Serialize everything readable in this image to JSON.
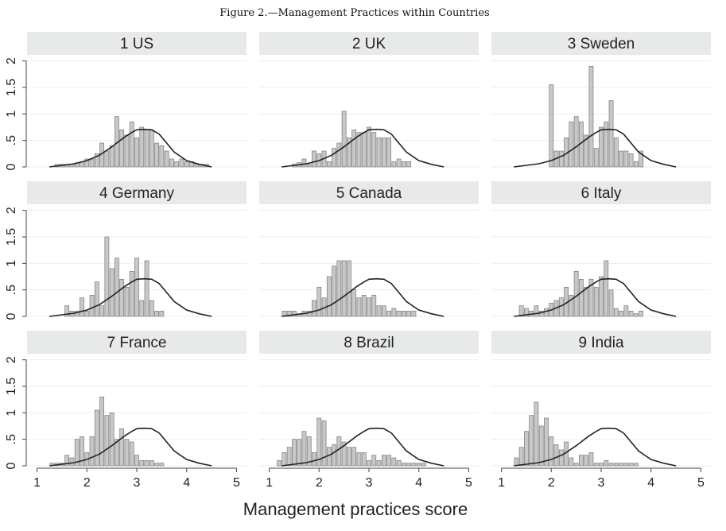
{
  "figure_title": "Figure 2.—Management Practices within Countries",
  "chart_data": {
    "type": "bar",
    "xlabel": "Management practices score",
    "xticks": [
      1,
      2,
      3,
      4,
      5
    ],
    "yticks": [
      0,
      0.5,
      1,
      1.5,
      2
    ],
    "ytick_labels": [
      "0",
      ".5",
      "1",
      "1.5",
      "2"
    ],
    "xlim": [
      0.8,
      5.2
    ],
    "ylim": [
      0,
      2.1
    ],
    "bin_width": 0.1,
    "bar_color": "#c8c8c8",
    "line_color": "#222222",
    "reference_density": {
      "x": [
        1.25,
        1.5,
        1.75,
        2.0,
        2.25,
        2.5,
        2.75,
        2.9,
        3.0,
        3.15,
        3.3,
        3.45,
        3.6,
        3.75,
        4.0,
        4.25,
        4.5
      ],
      "y": [
        0.0,
        0.03,
        0.06,
        0.12,
        0.22,
        0.38,
        0.56,
        0.65,
        0.7,
        0.71,
        0.7,
        0.62,
        0.45,
        0.28,
        0.12,
        0.05,
        0.0
      ]
    },
    "panels": [
      {
        "label": "1 US",
        "bins": [
          1.4,
          1.5,
          1.6,
          1.7,
          1.8,
          1.9,
          2.0,
          2.1,
          2.2,
          2.3,
          2.4,
          2.5,
          2.6,
          2.7,
          2.8,
          2.9,
          3.0,
          3.1,
          3.2,
          3.3,
          3.4,
          3.5,
          3.6,
          3.7,
          3.8,
          3.9,
          4.0,
          4.1,
          4.2,
          4.3,
          4.4
        ],
        "values": [
          0.05,
          0.05,
          0.05,
          0.05,
          0.08,
          0.1,
          0.15,
          0.15,
          0.25,
          0.45,
          0.3,
          0.4,
          0.95,
          0.7,
          0.6,
          0.85,
          0.55,
          0.75,
          0.7,
          0.7,
          0.45,
          0.4,
          0.3,
          0.15,
          0.1,
          0.15,
          0.1,
          0.1,
          0.05,
          0.05,
          0.05
        ]
      },
      {
        "label": "2 UK",
        "bins": [
          1.5,
          1.6,
          1.7,
          1.8,
          1.9,
          2.0,
          2.1,
          2.2,
          2.3,
          2.4,
          2.5,
          2.6,
          2.7,
          2.8,
          2.9,
          3.0,
          3.1,
          3.2,
          3.3,
          3.4,
          3.5,
          3.6,
          3.7,
          3.8
        ],
        "values": [
          0.05,
          0.08,
          0.15,
          0.05,
          0.3,
          0.25,
          0.3,
          0.1,
          0.35,
          0.45,
          1.05,
          0.55,
          0.7,
          0.65,
          0.65,
          0.75,
          0.65,
          0.55,
          0.55,
          0.55,
          0.1,
          0.15,
          0.1,
          0.1
        ]
      },
      {
        "label": "3 Sweden",
        "bins": [
          2.0,
          2.1,
          2.2,
          2.3,
          2.4,
          2.5,
          2.6,
          2.7,
          2.8,
          2.9,
          3.0,
          3.1,
          3.2,
          3.3,
          3.4,
          3.5,
          3.6,
          3.7,
          3.8
        ],
        "values": [
          1.55,
          0.3,
          0.3,
          0.55,
          0.85,
          0.95,
          0.85,
          0.6,
          1.9,
          0.35,
          0.75,
          0.85,
          1.25,
          0.55,
          0.3,
          0.3,
          0.25,
          0.1,
          0.3
        ]
      },
      {
        "label": "4 Germany",
        "bins": [
          1.6,
          1.7,
          1.8,
          1.9,
          2.0,
          2.1,
          2.2,
          2.3,
          2.4,
          2.5,
          2.6,
          2.7,
          2.8,
          2.9,
          3.0,
          3.1,
          3.2,
          3.3,
          3.4,
          3.5
        ],
        "values": [
          0.2,
          0.1,
          0.1,
          0.35,
          0.1,
          0.4,
          0.65,
          0.2,
          1.5,
          0.9,
          1.1,
          0.7,
          0.55,
          0.85,
          1.1,
          0.3,
          1.05,
          0.3,
          0.1,
          0.1
        ]
      },
      {
        "label": "5 Canada",
        "bins": [
          1.3,
          1.4,
          1.5,
          1.6,
          1.7,
          1.8,
          1.9,
          2.0,
          2.1,
          2.2,
          2.3,
          2.4,
          2.5,
          2.6,
          2.7,
          2.8,
          2.9,
          3.0,
          3.1,
          3.2,
          3.3,
          3.4,
          3.5,
          3.6,
          3.7,
          3.8,
          3.9
        ],
        "values": [
          0.1,
          0.1,
          0.1,
          0.05,
          0.1,
          0.1,
          0.3,
          0.55,
          0.35,
          0.75,
          0.95,
          1.05,
          1.05,
          1.05,
          0.5,
          0.35,
          0.4,
          0.35,
          0.4,
          0.2,
          0.2,
          0.1,
          0.15,
          0.1,
          0.1,
          0.1,
          0.1
        ]
      },
      {
        "label": "6 Italy",
        "bins": [
          1.4,
          1.5,
          1.6,
          1.7,
          1.8,
          1.9,
          2.0,
          2.1,
          2.2,
          2.3,
          2.4,
          2.5,
          2.6,
          2.7,
          2.8,
          2.9,
          3.0,
          3.1,
          3.2,
          3.3,
          3.4,
          3.5,
          3.6,
          3.7,
          3.8
        ],
        "values": [
          0.2,
          0.15,
          0.1,
          0.2,
          0.1,
          0.15,
          0.25,
          0.3,
          0.35,
          0.55,
          0.4,
          0.85,
          0.7,
          0.55,
          0.7,
          0.55,
          0.75,
          1.05,
          0.5,
          0.15,
          0.1,
          0.2,
          0.1,
          0.05,
          0.1
        ]
      },
      {
        "label": "7 France",
        "bins": [
          1.3,
          1.4,
          1.5,
          1.6,
          1.7,
          1.8,
          1.9,
          2.0,
          2.1,
          2.2,
          2.3,
          2.4,
          2.5,
          2.6,
          2.7,
          2.8,
          2.9,
          3.0,
          3.1,
          3.2,
          3.3,
          3.4,
          3.5
        ],
        "values": [
          0.05,
          0.05,
          0.05,
          0.2,
          0.15,
          0.5,
          0.55,
          0.25,
          0.55,
          1.05,
          1.3,
          0.95,
          1.0,
          0.5,
          0.7,
          0.5,
          0.45,
          0.2,
          0.1,
          0.1,
          0.1,
          0.05,
          0.05
        ]
      },
      {
        "label": "8 Brazil",
        "bins": [
          1.2,
          1.3,
          1.4,
          1.5,
          1.6,
          1.7,
          1.8,
          1.9,
          2.0,
          2.1,
          2.2,
          2.3,
          2.4,
          2.5,
          2.6,
          2.7,
          2.8,
          2.9,
          3.0,
          3.1,
          3.2,
          3.3,
          3.4,
          3.5,
          3.6,
          3.7,
          3.8,
          3.9,
          4.0,
          4.1
        ],
        "values": [
          0.1,
          0.25,
          0.35,
          0.5,
          0.5,
          0.65,
          0.55,
          0.25,
          0.9,
          0.85,
          0.35,
          0.4,
          0.55,
          0.45,
          0.35,
          0.35,
          0.25,
          0.25,
          0.1,
          0.2,
          0.1,
          0.2,
          0.2,
          0.15,
          0.1,
          0.05,
          0.05,
          0.05,
          0.05,
          0.05
        ]
      },
      {
        "label": "9 India",
        "bins": [
          1.3,
          1.4,
          1.5,
          1.6,
          1.7,
          1.8,
          1.9,
          2.0,
          2.1,
          2.2,
          2.3,
          2.4,
          2.5,
          2.6,
          2.7,
          2.8,
          2.9,
          3.0,
          3.1,
          3.2,
          3.3,
          3.4,
          3.5,
          3.6,
          3.7
        ],
        "values": [
          0.15,
          0.35,
          0.65,
          0.95,
          1.2,
          0.75,
          0.9,
          0.55,
          0.4,
          0.3,
          0.45,
          0.15,
          0.05,
          0.2,
          0.2,
          0.25,
          0.05,
          0.05,
          0.1,
          0.05,
          0.05,
          0.05,
          0.05,
          0.05,
          0.05
        ]
      }
    ]
  }
}
